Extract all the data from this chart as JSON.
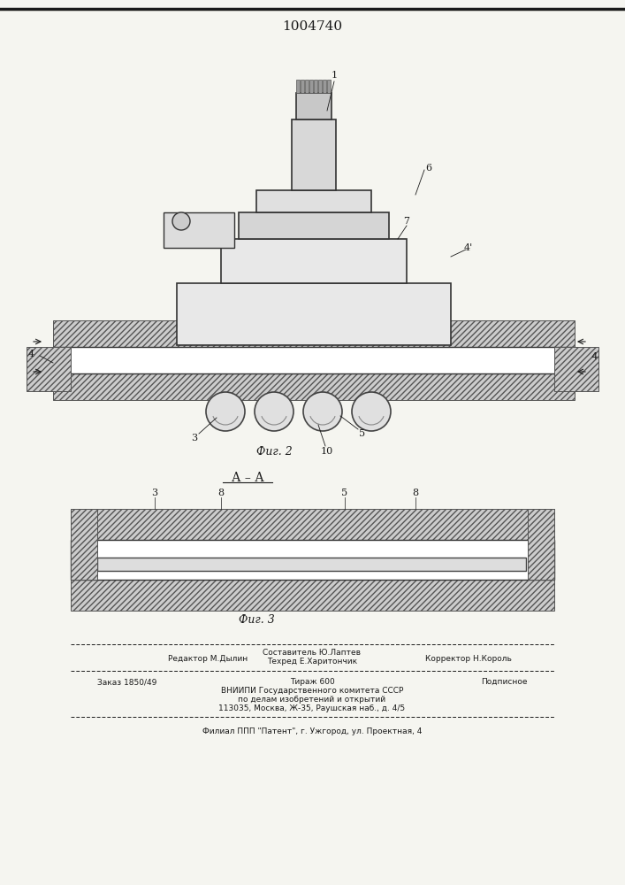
{
  "title": "1004740",
  "bg_color": "#f5f5f0",
  "fig2_label": "Фиг. 2",
  "fig3_label": "Фиг. 3",
  "section_label": "А – А",
  "footer_line1_left": "Редактор М.Дылин",
  "footer_line1_center": "Составитель Ю.Лаптев\nТехред Е.Харитончик",
  "footer_line1_right": "Корректор Н.Король",
  "footer_line2_left": "Заказ 1850/49",
  "footer_line2_center": "Тираж 600",
  "footer_line2_right": "Подписное",
  "footer_line3": "ВНИИПИ Государственного комитета СССР",
  "footer_line4": "по делам изобретений и открытий",
  "footer_line5": "113035, Москва, Ж-35, Раушская наб., д. 4/5",
  "footer_line6": "Филиал ППП \"Патент\", г. Ужгород, ул. Проектная, 4",
  "text_color": "#1a1a1a",
  "line_color": "#1a1a1a",
  "hatch_color": "#333333"
}
